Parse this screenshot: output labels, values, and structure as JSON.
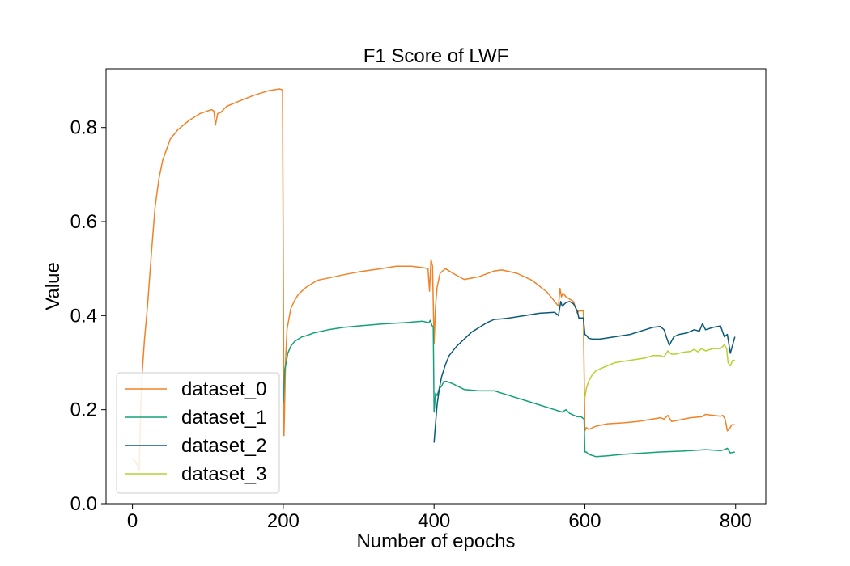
{
  "chart_data": {
    "type": "line",
    "title": "F1 Score of LWF",
    "xlabel": "Number of epochs",
    "ylabel": "Value",
    "xlim": [
      -35,
      840
    ],
    "ylim": [
      0,
      0.925
    ],
    "xticks": [
      0,
      200,
      400,
      600,
      800
    ],
    "xtick_labels": [
      "0",
      "200",
      "400",
      "600",
      "800"
    ],
    "yticks": [
      0.0,
      0.2,
      0.4,
      0.6,
      0.8
    ],
    "ytick_labels": [
      "0.0",
      "0.2",
      "0.4",
      "0.6",
      "0.8"
    ],
    "grid": false,
    "legend_position": "lower-left",
    "series": [
      {
        "name": "dataset_0",
        "color": "#f08228",
        "x": [
          0,
          5,
          9,
          11,
          13,
          16,
          20,
          25,
          30,
          35,
          40,
          50,
          60,
          75,
          90,
          105,
          108,
          110,
          113,
          117,
          125,
          140,
          160,
          180,
          195,
          199,
          201,
          203,
          205,
          210,
          215,
          220,
          230,
          245,
          260,
          280,
          300,
          330,
          350,
          370,
          385,
          392,
          394,
          396,
          398,
          400,
          402,
          404,
          408,
          415,
          425,
          440,
          460,
          480,
          490,
          510,
          530,
          550,
          565,
          567,
          569,
          571,
          575,
          585,
          590,
          592,
          595,
          598,
          600,
          602,
          605,
          615,
          630,
          650,
          670,
          690,
          700,
          705,
          710,
          715,
          725,
          740,
          755,
          760,
          780,
          783,
          786,
          789,
          792,
          795,
          799
        ],
        "y": [
          0.095,
          0.088,
          0.07,
          0.2,
          0.28,
          0.35,
          0.42,
          0.53,
          0.63,
          0.69,
          0.73,
          0.775,
          0.795,
          0.815,
          0.83,
          0.838,
          0.835,
          0.805,
          0.83,
          0.832,
          0.845,
          0.855,
          0.868,
          0.878,
          0.882,
          0.88,
          0.145,
          0.3,
          0.37,
          0.415,
          0.432,
          0.445,
          0.46,
          0.475,
          0.48,
          0.487,
          0.493,
          0.5,
          0.505,
          0.505,
          0.502,
          0.5,
          0.452,
          0.52,
          0.505,
          0.34,
          0.42,
          0.46,
          0.49,
          0.5,
          0.49,
          0.477,
          0.483,
          0.495,
          0.497,
          0.49,
          0.475,
          0.45,
          0.42,
          0.458,
          0.44,
          0.448,
          0.44,
          0.43,
          0.405,
          0.41,
          0.41,
          0.41,
          0.155,
          0.162,
          0.158,
          0.165,
          0.17,
          0.172,
          0.175,
          0.18,
          0.183,
          0.18,
          0.188,
          0.175,
          0.178,
          0.183,
          0.185,
          0.19,
          0.186,
          0.188,
          0.18,
          0.155,
          0.16,
          0.168,
          0.168
        ]
      },
      {
        "name": "dataset_1",
        "color": "#14a078",
        "x": [
          200,
          202,
          204,
          206,
          210,
          215,
          220,
          225,
          230,
          240,
          260,
          280,
          300,
          330,
          360,
          385,
          393,
          395,
          397,
          399,
          400,
          402,
          404,
          407,
          410,
          413,
          417,
          425,
          440,
          460,
          480,
          490,
          500,
          520,
          540,
          560,
          570,
          575,
          580,
          590,
          595,
          599,
          600,
          602,
          605,
          615,
          630,
          650,
          670,
          700,
          730,
          760,
          780,
          785,
          789,
          793,
          799
        ],
        "y": [
          0.215,
          0.285,
          0.3,
          0.32,
          0.335,
          0.345,
          0.35,
          0.355,
          0.357,
          0.363,
          0.37,
          0.375,
          0.378,
          0.382,
          0.385,
          0.388,
          0.385,
          0.39,
          0.38,
          0.375,
          0.195,
          0.235,
          0.23,
          0.245,
          0.25,
          0.26,
          0.26,
          0.255,
          0.243,
          0.24,
          0.24,
          0.235,
          0.23,
          0.22,
          0.21,
          0.2,
          0.195,
          0.2,
          0.192,
          0.185,
          0.185,
          0.18,
          0.11,
          0.11,
          0.105,
          0.1,
          0.102,
          0.105,
          0.107,
          0.11,
          0.112,
          0.115,
          0.113,
          0.115,
          0.118,
          0.108,
          0.11
        ]
      },
      {
        "name": "dataset_2",
        "color": "#0a5a78",
        "x": [
          400,
          402,
          404,
          407,
          410,
          415,
          420,
          430,
          440,
          450,
          460,
          470,
          480,
          490,
          500,
          520,
          540,
          560,
          565,
          568,
          570,
          575,
          580,
          585,
          590,
          592,
          595,
          598,
          600,
          602,
          605,
          610,
          620,
          640,
          660,
          680,
          690,
          700,
          705,
          708,
          712,
          718,
          725,
          735,
          745,
          752,
          756,
          760,
          770,
          780,
          785,
          789,
          793,
          799
        ],
        "y": [
          0.13,
          0.17,
          0.21,
          0.245,
          0.27,
          0.295,
          0.315,
          0.335,
          0.35,
          0.365,
          0.375,
          0.385,
          0.392,
          0.393,
          0.395,
          0.4,
          0.405,
          0.407,
          0.4,
          0.43,
          0.42,
          0.428,
          0.43,
          0.425,
          0.41,
          0.395,
          0.395,
          0.395,
          0.36,
          0.358,
          0.352,
          0.35,
          0.35,
          0.355,
          0.36,
          0.37,
          0.375,
          0.377,
          0.37,
          0.355,
          0.337,
          0.355,
          0.36,
          0.363,
          0.37,
          0.367,
          0.383,
          0.37,
          0.375,
          0.378,
          0.355,
          0.36,
          0.32,
          0.355
        ]
      },
      {
        "name": "dataset_3",
        "color": "#b4d232",
        "x": [
          600,
          602,
          605,
          610,
          615,
          625,
          640,
          660,
          680,
          690,
          700,
          705,
          710,
          715,
          720,
          730,
          740,
          745,
          750,
          755,
          760,
          770,
          780,
          785,
          788,
          790,
          793,
          796,
          799
        ],
        "y": [
          0.225,
          0.245,
          0.26,
          0.275,
          0.283,
          0.29,
          0.3,
          0.305,
          0.31,
          0.315,
          0.315,
          0.312,
          0.325,
          0.318,
          0.318,
          0.322,
          0.324,
          0.328,
          0.323,
          0.33,
          0.325,
          0.33,
          0.33,
          0.338,
          0.33,
          0.3,
          0.293,
          0.305,
          0.305
        ]
      }
    ]
  }
}
